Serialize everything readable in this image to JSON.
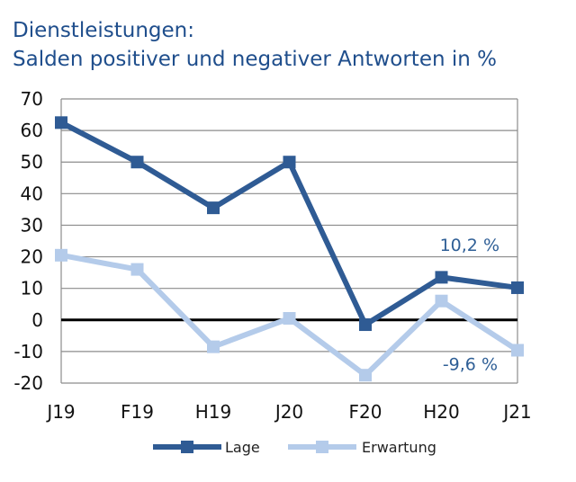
{
  "chart_data": {
    "type": "line",
    "title": "Dienstleistungen:",
    "subtitle": "Salden positiver und negativer Antworten in %",
    "categories": [
      "J19",
      "F19",
      "H19",
      "J20",
      "F20",
      "H20",
      "J21"
    ],
    "series": [
      {
        "name": "Lage",
        "color": "#2f5b94",
        "values": [
          62.5,
          50,
          35.5,
          50,
          -1.5,
          13.5,
          10.2
        ]
      },
      {
        "name": "Erwartung",
        "color": "#b4cbea",
        "values": [
          20.5,
          16,
          -8.5,
          0.5,
          -17.5,
          6,
          -9.6
        ]
      }
    ],
    "ylim": [
      -20,
      70
    ],
    "yticks": [
      70,
      60,
      50,
      40,
      30,
      20,
      10,
      0,
      -10,
      -20
    ],
    "ytick_labels": [
      "70",
      "60",
      "50",
      "40",
      "30",
      "20",
      "10",
      "0",
      "-10",
      "-20"
    ],
    "grid": true,
    "zero_line": true,
    "legend_position": "bottom",
    "annotations": [
      {
        "text": "10,2 %",
        "series": "Lage",
        "category": "J21"
      },
      {
        "text": "-9,6 %",
        "series": "Erwartung",
        "category": "J21"
      }
    ]
  }
}
